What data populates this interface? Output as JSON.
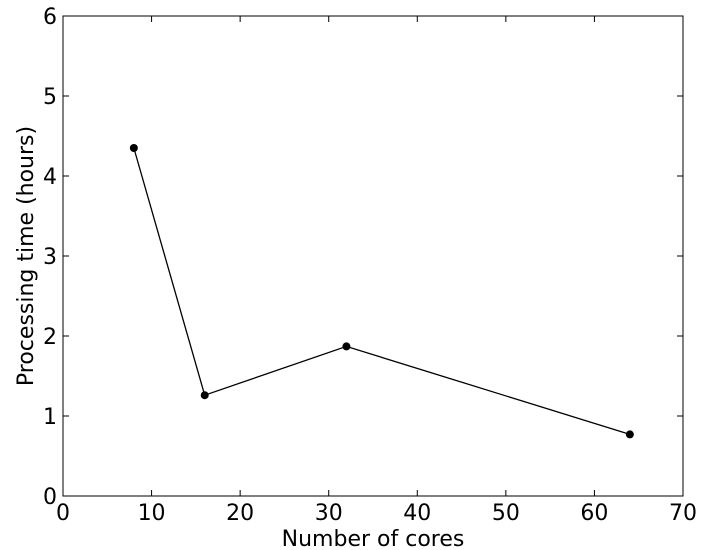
{
  "chart_data": {
    "type": "line",
    "x_label": "Number of cores",
    "y_label": "Processing time (hours)",
    "x": [
      8,
      16,
      32,
      64
    ],
    "series": [
      {
        "color": "#000000",
        "values": [
          4.35,
          1.26,
          1.87,
          0.77
        ]
      }
    ],
    "xlim": [
      0,
      70
    ],
    "xticks": [
      0,
      10,
      20,
      30,
      40,
      50,
      60,
      70
    ],
    "ylim": [
      0,
      6
    ],
    "yticks": [
      0,
      1,
      2,
      3,
      4,
      5,
      6
    ]
  }
}
